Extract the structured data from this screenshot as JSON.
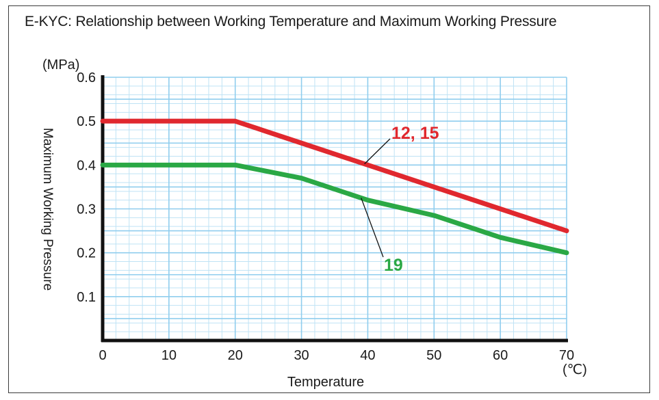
{
  "title": "E-KYC: Relationship between Working Temperature and Maximum Working Pressure",
  "chart_data": {
    "type": "line",
    "title": "E-KYC: Relationship between Working Temperature and Maximum Working Pressure",
    "xlabel": "Temperature",
    "ylabel": "Maximum Working Pressure",
    "x_unit": "(℃)",
    "y_unit": "(MPa)",
    "xlim": [
      0,
      70
    ],
    "ylim": [
      0,
      0.6
    ],
    "x_ticks": [
      0,
      10,
      20,
      30,
      40,
      50,
      60,
      70
    ],
    "x_tick_labels": [
      "0",
      "10",
      "20",
      "30",
      "40",
      "50",
      "60",
      "70"
    ],
    "y_ticks": [
      0.1,
      0.2,
      0.3,
      0.4,
      0.5,
      0.6
    ],
    "y_tick_labels": [
      "0.1",
      "0.2",
      "0.3",
      "0.4",
      "0.5",
      "0.6"
    ],
    "grid": true,
    "series": [
      {
        "name": "12, 15",
        "color": "#e0282e",
        "x": [
          0,
          20,
          30,
          40,
          50,
          60,
          70
        ],
        "y": [
          0.5,
          0.5,
          0.45,
          0.4,
          0.35,
          0.3,
          0.25
        ]
      },
      {
        "name": "19",
        "color": "#2aa845",
        "x": [
          0,
          20,
          30,
          40,
          50,
          60,
          70
        ],
        "y": [
          0.4,
          0.4,
          0.37,
          0.32,
          0.285,
          0.235,
          0.2
        ]
      }
    ],
    "annotations": [
      {
        "text": "12, 15",
        "series": 0,
        "color": "#e0282e"
      },
      {
        "text": "19",
        "series": 1,
        "color": "#2aa845"
      }
    ]
  }
}
